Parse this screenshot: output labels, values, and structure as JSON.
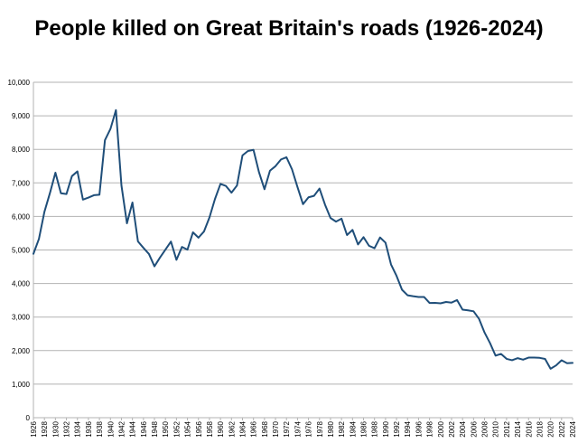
{
  "chart_data": {
    "type": "line",
    "title": "People killed on Great Britain's roads (1926-2024)",
    "xlabel": "",
    "ylabel": "",
    "x_range": [
      1926,
      2024
    ],
    "ylim": [
      0,
      10000
    ],
    "y_ticks": [
      "0",
      "1,000",
      "2,000",
      "3,000",
      "4,000",
      "5,000",
      "6,000",
      "7,000",
      "8,000",
      "9,000",
      "10,000"
    ],
    "x_ticks": [
      "1926",
      "1928",
      "1930",
      "1932",
      "1934",
      "1936",
      "1938",
      "1940",
      "1942",
      "1944",
      "1946",
      "1948",
      "1950",
      "1952",
      "1954",
      "1956",
      "1958",
      "1960",
      "1962",
      "1964",
      "1966",
      "1968",
      "1970",
      "1972",
      "1974",
      "1976",
      "1978",
      "1980",
      "1982",
      "1984",
      "1986",
      "1988",
      "1990",
      "1992",
      "1994",
      "1996",
      "1998",
      "2000",
      "2002",
      "2004",
      "2006",
      "2008",
      "2010",
      "2012",
      "2014",
      "2016",
      "2018",
      "2020",
      "2022",
      "2024"
    ],
    "grid": {
      "horizontal": true,
      "vertical": false
    },
    "line_color": "#1f4e79",
    "series": [
      {
        "x": [
          1926,
          1927,
          1928,
          1929,
          1930,
          1931,
          1932,
          1933,
          1934,
          1935,
          1936,
          1937,
          1938,
          1939,
          1940,
          1941,
          1942,
          1943,
          1944,
          1945,
          1946,
          1947,
          1948,
          1949,
          1950,
          1951,
          1952,
          1953,
          1954,
          1955,
          1956,
          1957,
          1958,
          1959,
          1960,
          1961,
          1962,
          1963,
          1964,
          1965,
          1966,
          1967,
          1968,
          1969,
          1970,
          1971,
          1972,
          1973,
          1974,
          1975,
          1976,
          1977,
          1978,
          1979,
          1980,
          1981,
          1982,
          1983,
          1984,
          1985,
          1986,
          1987,
          1988,
          1989,
          1990,
          1991,
          1992,
          1993,
          1994,
          1995,
          1996,
          1997,
          1998,
          1999,
          2000,
          2001,
          2002,
          2003,
          2004,
          2005,
          2006,
          2007,
          2008,
          2009,
          2010,
          2011,
          2012,
          2013,
          2014,
          2015,
          2016,
          2017,
          2018,
          2019,
          2020,
          2021,
          2022,
          2023,
          2024
        ],
        "values": [
          4886,
          5329,
          6138,
          6696,
          7305,
          6691,
          6667,
          7202,
          7343,
          6502,
          6561,
          6633,
          6646,
          8272,
          8609,
          9169,
          6926,
          5796,
          6416,
          5256,
          5062,
          4881,
          4513,
          4773,
          5012,
          5250,
          4706,
          5090,
          5010,
          5526,
          5367,
          5550,
          5970,
          6520,
          6970,
          6908,
          6709,
          6922,
          7820,
          7952,
          7985,
          7319,
          6810,
          7365,
          7499,
          7699,
          7763,
          7406,
          6876,
          6366,
          6570,
          6614,
          6831,
          6352,
          5953,
          5846,
          5934,
          5445,
          5599,
          5165,
          5382,
          5125,
          5052,
          5373,
          5217,
          4568,
          4229,
          3814,
          3650,
          3621,
          3598,
          3599,
          3421,
          3423,
          3409,
          3450,
          3431,
          3508,
          3221,
          3201,
          3172,
          2946,
          2538,
          2222,
          1850,
          1901,
          1754,
          1713,
          1775,
          1730,
          1792,
          1793,
          1784,
          1752,
          1460,
          1558,
          1711,
          1624,
          1633
        ]
      }
    ]
  }
}
